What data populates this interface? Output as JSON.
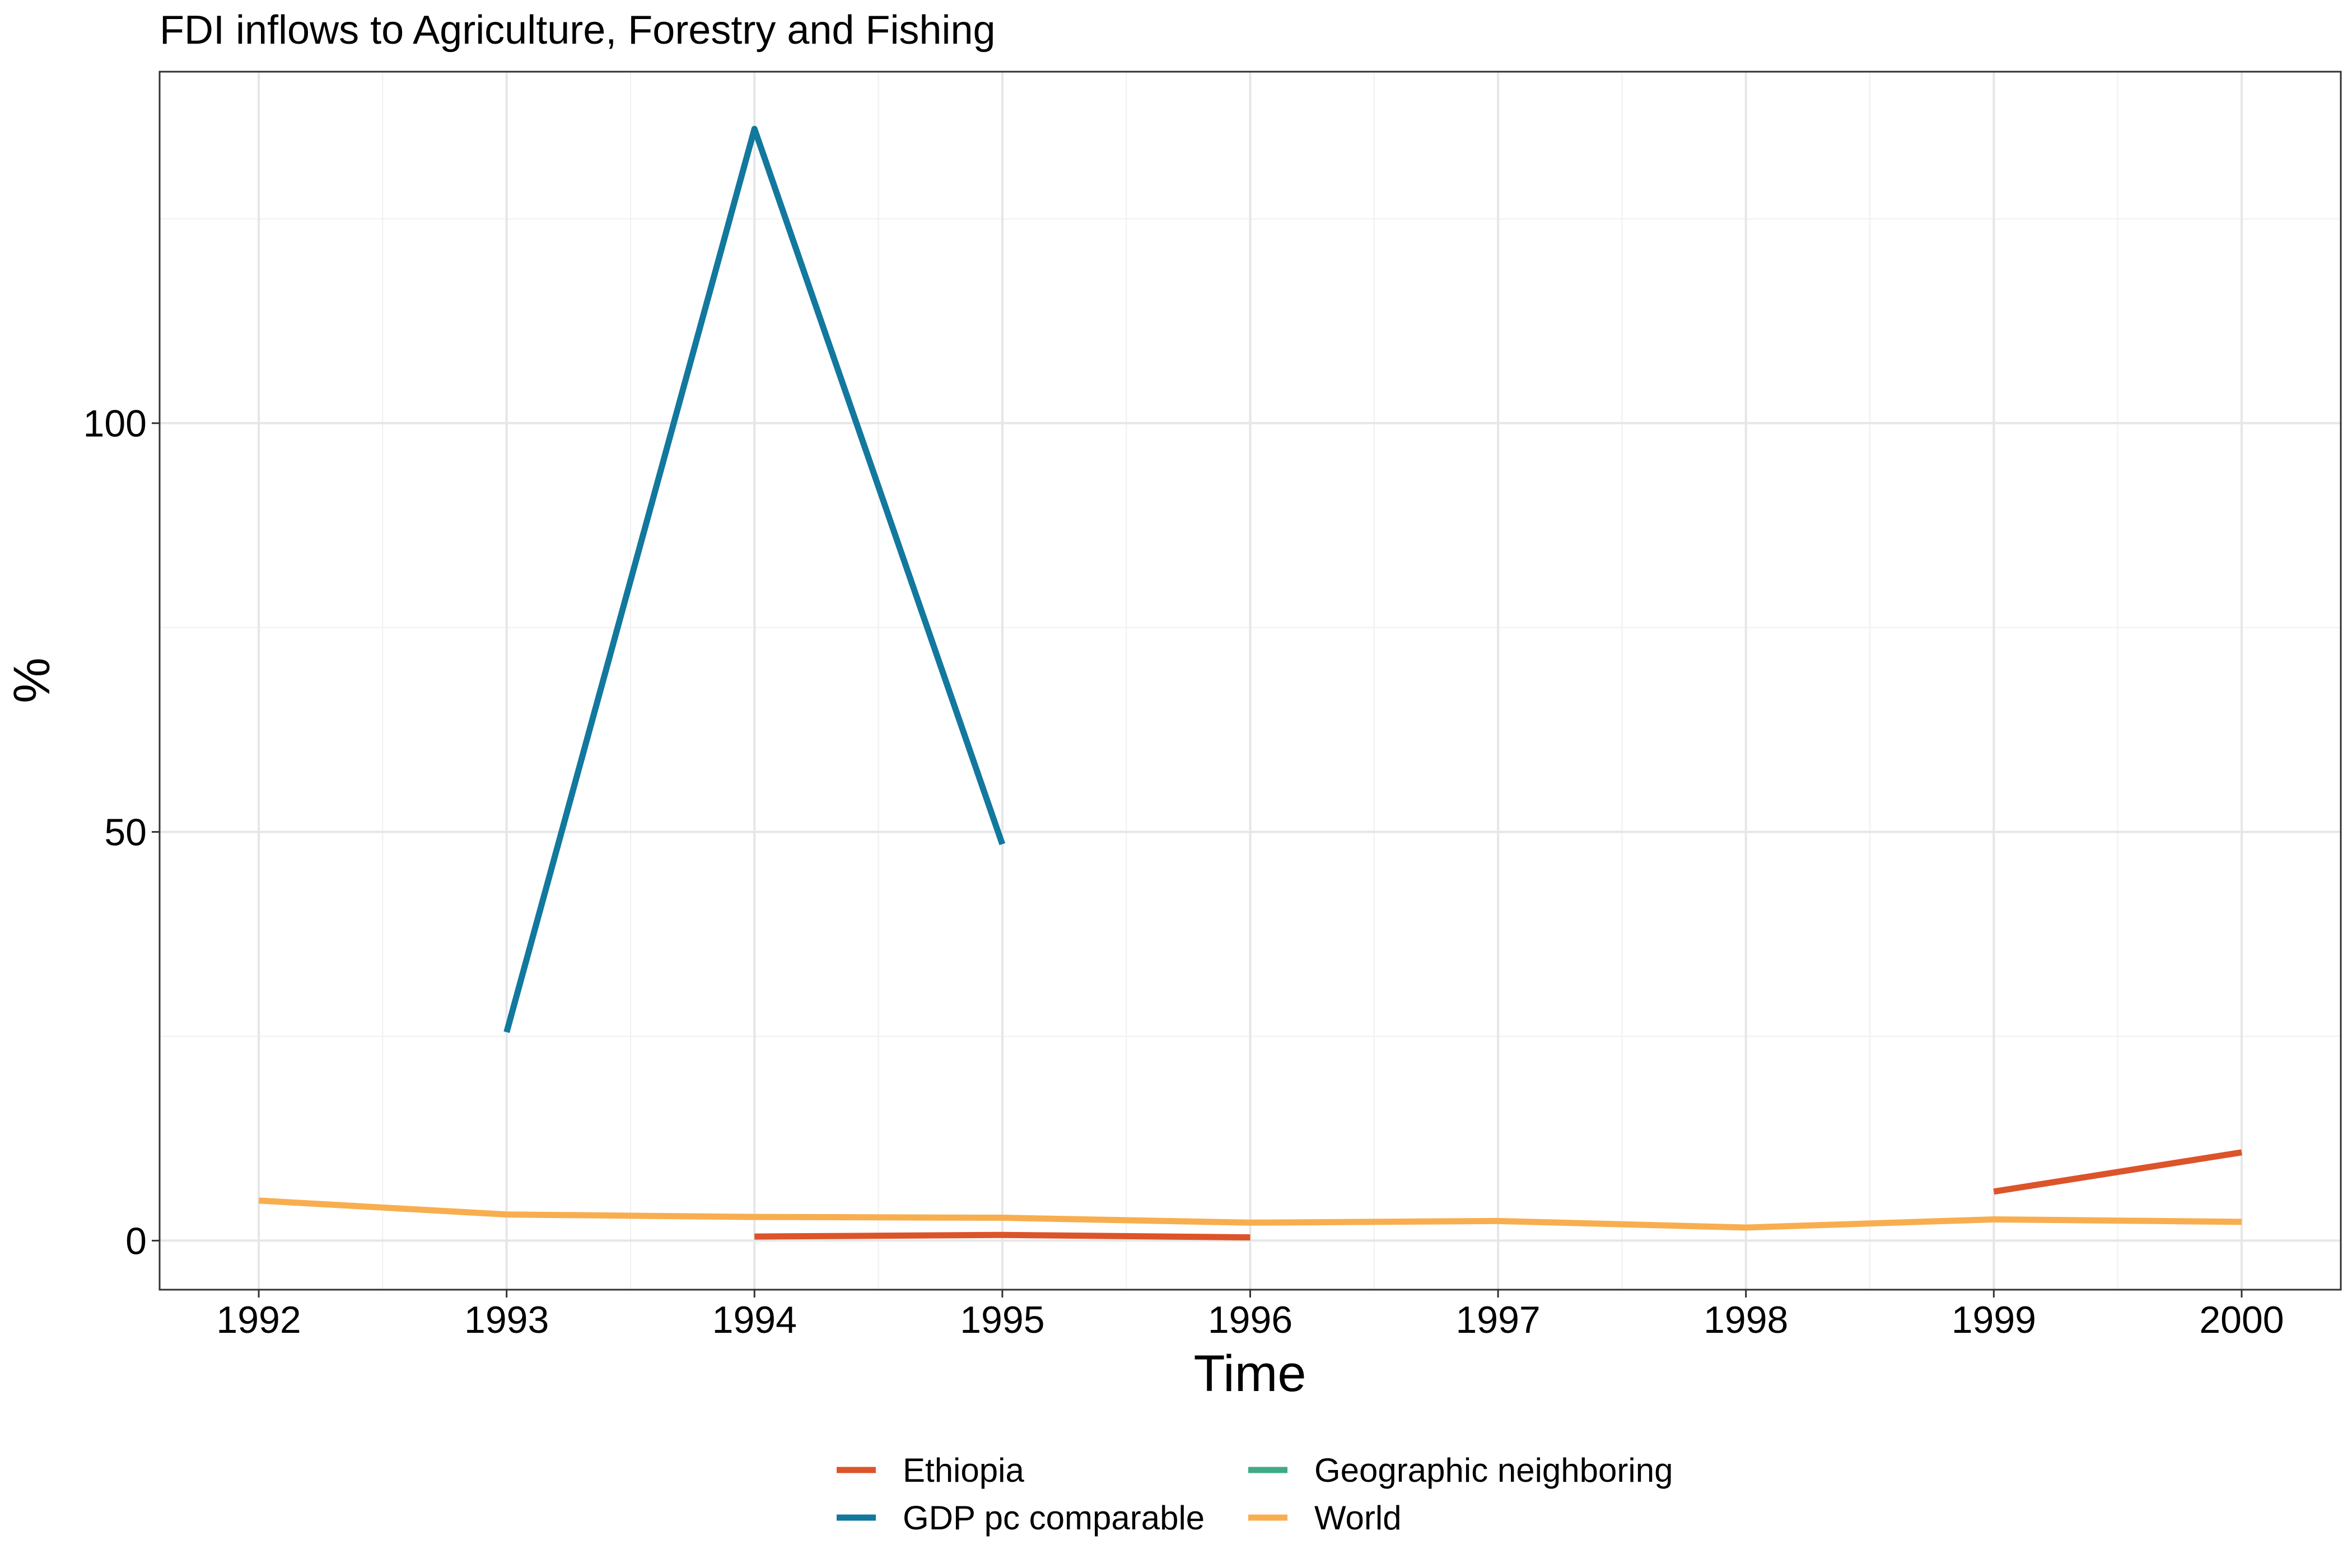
{
  "chart_data": {
    "type": "line",
    "title": "FDI inflows to Agriculture, Forestry and Fishing",
    "xlabel": "Time",
    "ylabel": "%",
    "x": [
      1992,
      1993,
      1994,
      1995,
      1996,
      1997,
      1998,
      1999,
      2000
    ],
    "x_ticks": [
      "1992",
      "1993",
      "1994",
      "1995",
      "1996",
      "1997",
      "1998",
      "1999",
      "2000"
    ],
    "xlim": [
      1991.6,
      2000.4
    ],
    "ylim": [
      -6,
      143
    ],
    "y_ticks": [
      0,
      50,
      100
    ],
    "y_tick_labels": [
      "0",
      "50",
      "100"
    ],
    "grid": true,
    "legend_position": "bottom",
    "series": [
      {
        "name": "Ethiopia",
        "color": "#DC5429",
        "values": [
          null,
          null,
          0.5,
          0.7,
          0.4,
          null,
          null,
          6.0,
          10.8
        ]
      },
      {
        "name": "GDP pc comparable",
        "color": "#12789E",
        "values": [
          null,
          25.5,
          136.0,
          48.5,
          null,
          null,
          null,
          null,
          null
        ]
      },
      {
        "name": "Geographic neighboring",
        "color": "#3FAA85",
        "values": [
          null,
          null,
          null,
          null,
          null,
          null,
          null,
          null,
          null
        ]
      },
      {
        "name": "World",
        "color": "#F8AE4F",
        "values": [
          4.9,
          3.2,
          2.9,
          2.8,
          2.2,
          2.4,
          1.6,
          2.6,
          2.3
        ]
      }
    ]
  }
}
